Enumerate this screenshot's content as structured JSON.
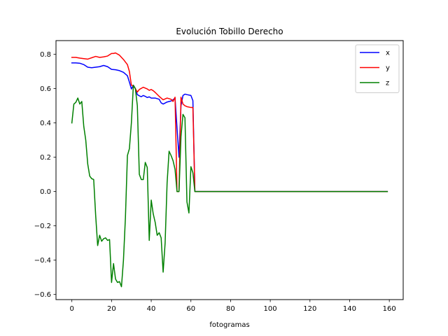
{
  "chart_data": {
    "type": "line",
    "title": "Evolución Tobillo Derecho",
    "xlabel": "fotogramas",
    "ylabel": "",
    "xlim": [
      -8,
      167
    ],
    "ylim": [
      -0.63,
      0.88
    ],
    "xticks": [
      0,
      20,
      40,
      60,
      80,
      100,
      120,
      140,
      160
    ],
    "yticks": [
      -0.6,
      -0.4,
      -0.2,
      0.0,
      0.2,
      0.4,
      0.6,
      0.8
    ],
    "xtick_labels": [
      "0",
      "20",
      "40",
      "60",
      "80",
      "100",
      "120",
      "140",
      "160"
    ],
    "ytick_labels": [
      "−0.6",
      "−0.4",
      "−0.2",
      "0.0",
      "0.2",
      "0.4",
      "0.6",
      "0.8"
    ],
    "grid": false,
    "legend_position": "upper right",
    "series": [
      {
        "name": "x",
        "color": "#0000ff",
        "points": [
          [
            0,
            0.75
          ],
          [
            2,
            0.75
          ],
          [
            4,
            0.748
          ],
          [
            6,
            0.74
          ],
          [
            8,
            0.725
          ],
          [
            10,
            0.722
          ],
          [
            12,
            0.725
          ],
          [
            14,
            0.728
          ],
          [
            16,
            0.735
          ],
          [
            18,
            0.728
          ],
          [
            20,
            0.712
          ],
          [
            22,
            0.71
          ],
          [
            24,
            0.705
          ],
          [
            26,
            0.695
          ],
          [
            28,
            0.675
          ],
          [
            29,
            0.638
          ],
          [
            30,
            0.598
          ],
          [
            31,
            0.62
          ],
          [
            32,
            0.6
          ],
          [
            33,
            0.565
          ],
          [
            34,
            0.558
          ],
          [
            35,
            0.553
          ],
          [
            36,
            0.56
          ],
          [
            37,
            0.555
          ],
          [
            38,
            0.548
          ],
          [
            39,
            0.552
          ],
          [
            40,
            0.545
          ],
          [
            42,
            0.545
          ],
          [
            44,
            0.538
          ],
          [
            45,
            0.517
          ],
          [
            46,
            0.51
          ],
          [
            48,
            0.522
          ],
          [
            50,
            0.528
          ],
          [
            51,
            0.535
          ],
          [
            52,
            0.545
          ],
          [
            53,
            0.37
          ],
          [
            54,
            0.2
          ],
          [
            55,
            0.5
          ],
          [
            56,
            0.56
          ],
          [
            57,
            0.568
          ],
          [
            58,
            0.565
          ],
          [
            60,
            0.56
          ],
          [
            61,
            0.53
          ],
          [
            62,
            0.0
          ],
          [
            159,
            0.0
          ]
        ]
      },
      {
        "name": "y",
        "color": "#ff0000",
        "points": [
          [
            0,
            0.782
          ],
          [
            2,
            0.782
          ],
          [
            4,
            0.778
          ],
          [
            6,
            0.775
          ],
          [
            8,
            0.772
          ],
          [
            10,
            0.78
          ],
          [
            12,
            0.788
          ],
          [
            14,
            0.782
          ],
          [
            16,
            0.785
          ],
          [
            18,
            0.79
          ],
          [
            20,
            0.805
          ],
          [
            21,
            0.805
          ],
          [
            22,
            0.808
          ],
          [
            24,
            0.795
          ],
          [
            26,
            0.77
          ],
          [
            28,
            0.74
          ],
          [
            29,
            0.7
          ],
          [
            30,
            0.62
          ],
          [
            31,
            0.615
          ],
          [
            32,
            0.6
          ],
          [
            33,
            0.58
          ],
          [
            34,
            0.595
          ],
          [
            36,
            0.608
          ],
          [
            38,
            0.598
          ],
          [
            39,
            0.59
          ],
          [
            40,
            0.595
          ],
          [
            41,
            0.588
          ],
          [
            42,
            0.578
          ],
          [
            44,
            0.555
          ],
          [
            46,
            0.535
          ],
          [
            48,
            0.545
          ],
          [
            50,
            0.538
          ],
          [
            51,
            0.525
          ],
          [
            52,
            0.55
          ],
          [
            53,
            0.0
          ],
          [
            54,
            0.0
          ],
          [
            55,
            0.55
          ],
          [
            56,
            0.51
          ],
          [
            57,
            0.5
          ],
          [
            58,
            0.495
          ],
          [
            60,
            0.49
          ],
          [
            61,
            0.49
          ],
          [
            62,
            0.0
          ],
          [
            159,
            0.0
          ]
        ]
      },
      {
        "name": "z",
        "color": "#008000",
        "points": [
          [
            0,
            0.4
          ],
          [
            1,
            0.51
          ],
          [
            2,
            0.52
          ],
          [
            3,
            0.545
          ],
          [
            4,
            0.51
          ],
          [
            5,
            0.525
          ],
          [
            6,
            0.38
          ],
          [
            7,
            0.3
          ],
          [
            8,
            0.16
          ],
          [
            9,
            0.09
          ],
          [
            10,
            0.075
          ],
          [
            11,
            0.07
          ],
          [
            12,
            -0.14
          ],
          [
            13,
            -0.315
          ],
          [
            14,
            -0.255
          ],
          [
            15,
            -0.29
          ],
          [
            16,
            -0.275
          ],
          [
            17,
            -0.27
          ],
          [
            18,
            -0.285
          ],
          [
            19,
            -0.28
          ],
          [
            20,
            -0.53
          ],
          [
            21,
            -0.42
          ],
          [
            22,
            -0.51
          ],
          [
            23,
            -0.53
          ],
          [
            24,
            -0.525
          ],
          [
            25,
            -0.555
          ],
          [
            26,
            -0.4
          ],
          [
            27,
            -0.15
          ],
          [
            28,
            0.21
          ],
          [
            29,
            0.25
          ],
          [
            30,
            0.4
          ],
          [
            31,
            0.62
          ],
          [
            32,
            0.6
          ],
          [
            33,
            0.5
          ],
          [
            34,
            0.1
          ],
          [
            35,
            0.07
          ],
          [
            36,
            0.07
          ],
          [
            37,
            0.17
          ],
          [
            38,
            0.14
          ],
          [
            39,
            -0.285
          ],
          [
            40,
            -0.05
          ],
          [
            41,
            -0.13
          ],
          [
            42,
            -0.18
          ],
          [
            43,
            -0.255
          ],
          [
            44,
            -0.24
          ],
          [
            45,
            -0.27
          ],
          [
            46,
            -0.47
          ],
          [
            47,
            -0.3
          ],
          [
            48,
            0.05
          ],
          [
            49,
            0.235
          ],
          [
            50,
            0.21
          ],
          [
            51,
            0.18
          ],
          [
            52,
            0.13
          ],
          [
            53,
            0.0
          ],
          [
            54,
            0.0
          ],
          [
            55,
            0.32
          ],
          [
            56,
            0.45
          ],
          [
            57,
            0.43
          ],
          [
            58,
            -0.06
          ],
          [
            59,
            -0.125
          ],
          [
            60,
            0.145
          ],
          [
            61,
            0.11
          ],
          [
            62,
            0.0
          ],
          [
            159,
            0.0
          ]
        ]
      }
    ]
  }
}
